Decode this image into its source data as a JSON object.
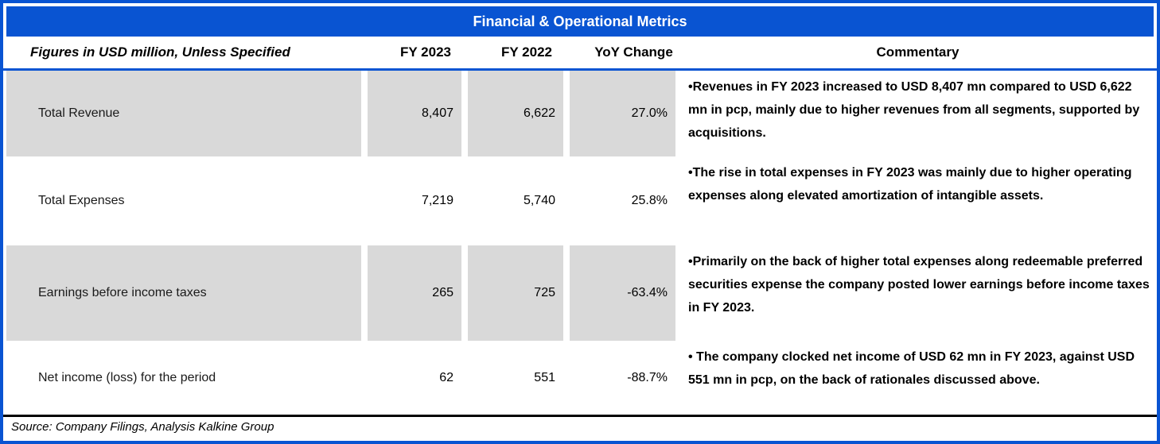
{
  "title": "Financial & Operational Metrics",
  "header": {
    "figures_label": "Figures in USD million, Unless Specified",
    "fy2023": "FY 2023",
    "fy2022": "FY 2022",
    "yoy": "YoY Change",
    "commentary": "Commentary"
  },
  "rows": [
    {
      "metric": "Total Revenue",
      "fy2023": "8,407",
      "fy2022": "6,622",
      "yoy": "27.0%",
      "commentary": "•Revenues in FY 2023 increased to USD 8,407 mn compared to USD 6,622 mn in pcp, mainly due to higher revenues from all segments, supported by acquisitions."
    },
    {
      "metric": "Total Expenses",
      "fy2023": "7,219",
      "fy2022": "5,740",
      "yoy": "25.8%",
      "commentary": "•The rise in total expenses in FY 2023 was mainly due to higher operating expenses along elevated amortization of intangible assets."
    },
    {
      "metric": "Earnings before income taxes",
      "fy2023": "265",
      "fy2022": "725",
      "yoy": "-63.4%",
      "commentary": "•Primarily on the back of higher total expenses along redeemable preferred securities expense the company posted lower earnings before income taxes in FY 2023."
    },
    {
      "metric": "Net income (loss) for the period",
      "fy2023": "62",
      "fy2022": "551",
      "yoy": "-88.7%",
      "commentary": "• The company clocked net income of USD 62 mn in FY 2023, against USD 551 mn in pcp, on the back of rationales discussed above."
    }
  ],
  "footer": {
    "source": "Source: Company Filings, Analysis Kalkine Group"
  },
  "colors": {
    "header_blue": "#0954D2",
    "row_gray": "#D9D9D9",
    "rule_black": "#000000",
    "title_text": "#FFFFFF"
  }
}
